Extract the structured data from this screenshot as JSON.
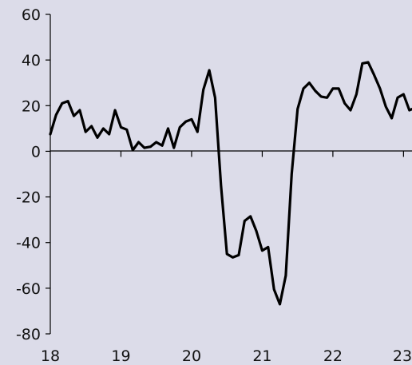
{
  "chart_data": {
    "type": "line",
    "title": "",
    "xlabel": "",
    "ylabel": "",
    "background": "#dcdce9",
    "line_color": "#000000",
    "grid": false,
    "legend": "none",
    "xlim": [
      18,
      23.12
    ],
    "ylim": [
      -80,
      60
    ],
    "x_ticks": [
      18,
      19,
      20,
      21,
      22,
      23
    ],
    "x_tick_labels": [
      "18",
      "19",
      "20",
      "21",
      "22",
      "23"
    ],
    "y_ticks": [
      60,
      40,
      20,
      0,
      -20,
      -40,
      -60,
      -80
    ],
    "y_tick_labels": [
      "60",
      "40",
      "20",
      "0",
      "-20",
      "-40",
      "-60",
      "-80"
    ],
    "series": [
      {
        "x": [
          18.0,
          18.083,
          18.167,
          18.25,
          18.333,
          18.417,
          18.5,
          18.583,
          18.667,
          18.75,
          18.833,
          18.917,
          19.0,
          19.083,
          19.167,
          19.25,
          19.333,
          19.417,
          19.5,
          19.583,
          19.667,
          19.75,
          19.833,
          19.917,
          20.0,
          20.083,
          20.167,
          20.25,
          20.333,
          20.417,
          20.5,
          20.583,
          20.667,
          20.75,
          20.833,
          20.917,
          21.0,
          21.083,
          21.167,
          21.25,
          21.333,
          21.417,
          21.5,
          21.583,
          21.667,
          21.75,
          21.833,
          21.917,
          22.0,
          22.083,
          22.167,
          22.25,
          22.333,
          22.417,
          22.5,
          22.583,
          22.667,
          22.75,
          22.833,
          22.917,
          23.0,
          23.083,
          23.12
        ],
        "values": [
          7.5,
          16,
          21,
          22,
          15.5,
          18,
          8.5,
          11,
          6,
          10,
          7.5,
          18,
          10.5,
          9.5,
          0.5,
          4,
          1.5,
          2,
          4,
          2.5,
          10,
          1.5,
          10.5,
          13,
          14,
          8.5,
          27,
          35.5,
          23.5,
          -15,
          -45,
          -46.5,
          -45.5,
          -30.5,
          -28.5,
          -35,
          -43.5,
          -42,
          -60.5,
          -67,
          -54.5,
          -10,
          18.5,
          27.5,
          30,
          26.5,
          24,
          23.5,
          27.5,
          27.5,
          21,
          18,
          25,
          38.5,
          39,
          33.5,
          27.5,
          19.5,
          14.5,
          23.5,
          25,
          18,
          18.5
        ]
      }
    ]
  }
}
